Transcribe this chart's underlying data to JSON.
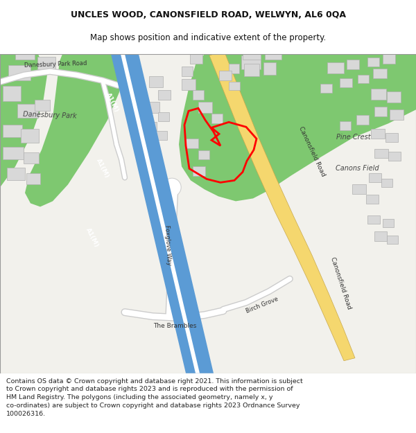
{
  "title": "UNCLES WOOD, CANONSFIELD ROAD, WELWYN, AL6 0QA",
  "subtitle": "Map shows position and indicative extent of the property.",
  "copyright_text": "Contains OS data © Crown copyright and database right 2021. This information is subject\nto Crown copyright and database rights 2023 and is reproduced with the permission of\nHM Land Registry. The polygons (including the associated geometry, namely x, y\nco-ordinates) are subject to Crown copyright and database rights 2023 Ordnance Survey\n100026316.",
  "title_fontsize": 9,
  "subtitle_fontsize": 8.5,
  "copyright_fontsize": 6.8,
  "map_bg": "#f2f1ec",
  "motorway_color": "#5b9bd5",
  "road_yellow_color": "#f5d76e",
  "road_outline_color": "#c8a84b",
  "road_white_color": "#ffffff",
  "road_grey_outline": "#cccccc",
  "building_color": "#d8d8d8",
  "building_outline": "#b0b0b0",
  "green_color": "#7ec870",
  "red_color": "#ff0000",
  "red_linewidth": 2.0,
  "border_color": "#999999"
}
